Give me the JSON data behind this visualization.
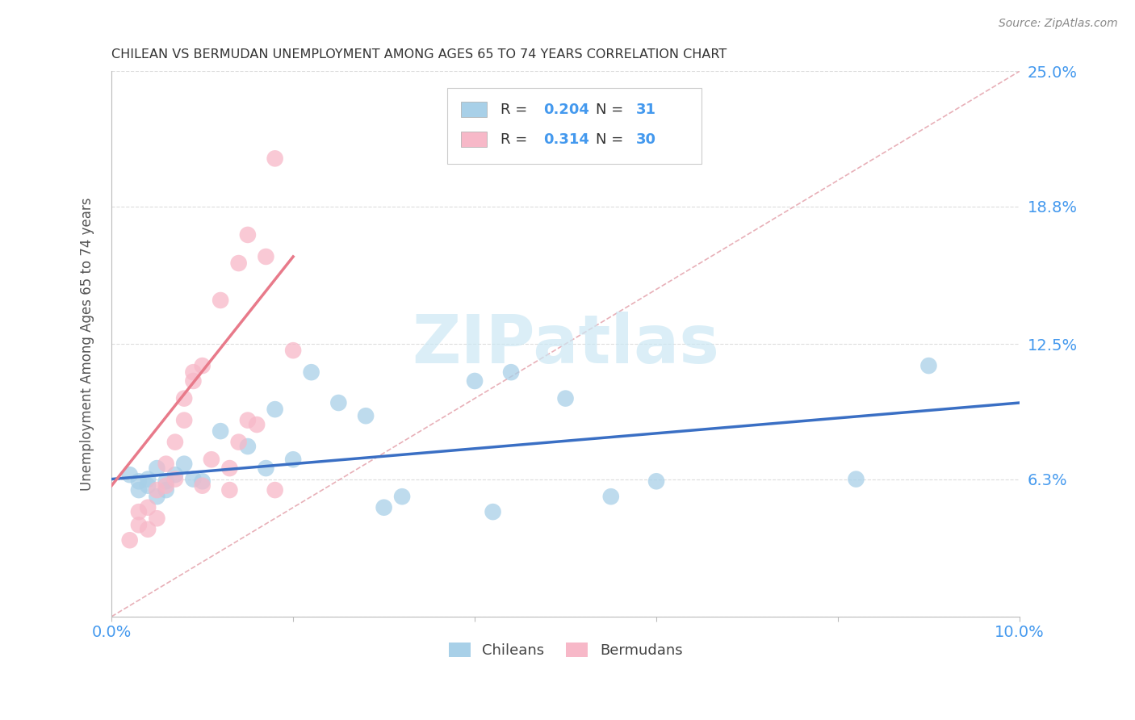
{
  "title": "CHILEAN VS BERMUDAN UNEMPLOYMENT AMONG AGES 65 TO 74 YEARS CORRELATION CHART",
  "source": "Source: ZipAtlas.com",
  "ylabel": "Unemployment Among Ages 65 to 74 years",
  "xlim": [
    0.0,
    0.1
  ],
  "ylim": [
    -0.01,
    0.26
  ],
  "plot_ylim": [
    0.0,
    0.25
  ],
  "xticks": [
    0.0,
    0.02,
    0.04,
    0.06,
    0.08,
    0.1
  ],
  "xticklabels": [
    "0.0%",
    "",
    "",
    "",
    "",
    "10.0%"
  ],
  "yticks": [
    0.0,
    0.063,
    0.125,
    0.188,
    0.25
  ],
  "yticklabels": [
    "",
    "6.3%",
    "12.5%",
    "18.8%",
    "25.0%"
  ],
  "chilean_color": "#a8d0e8",
  "bermudan_color": "#f7b8c8",
  "chilean_line_color": "#3a6fc4",
  "bermudan_line_color": "#e87a8a",
  "diagonal_color": "#e8b0b8",
  "tick_label_color": "#4499ee",
  "legend_text_color": "#000000",
  "legend_value_color": "#4499ee",
  "watermark_color": "#cce8f4",
  "chileans_x": [
    0.002,
    0.003,
    0.003,
    0.004,
    0.004,
    0.005,
    0.005,
    0.006,
    0.006,
    0.007,
    0.008,
    0.009,
    0.01,
    0.012,
    0.015,
    0.017,
    0.018,
    0.02,
    0.022,
    0.025,
    0.028,
    0.03,
    0.032,
    0.04,
    0.042,
    0.044,
    0.05,
    0.055,
    0.06,
    0.082,
    0.09
  ],
  "chileans_y": [
    0.065,
    0.062,
    0.058,
    0.06,
    0.063,
    0.068,
    0.055,
    0.062,
    0.058,
    0.065,
    0.07,
    0.063,
    0.062,
    0.085,
    0.078,
    0.068,
    0.095,
    0.072,
    0.112,
    0.098,
    0.092,
    0.05,
    0.055,
    0.108,
    0.048,
    0.112,
    0.1,
    0.055,
    0.062,
    0.063,
    0.115
  ],
  "bermudans_x": [
    0.002,
    0.003,
    0.003,
    0.004,
    0.004,
    0.005,
    0.005,
    0.006,
    0.006,
    0.007,
    0.007,
    0.008,
    0.008,
    0.009,
    0.009,
    0.01,
    0.01,
    0.011,
    0.012,
    0.013,
    0.013,
    0.014,
    0.014,
    0.015,
    0.015,
    0.016,
    0.017,
    0.018,
    0.018,
    0.02
  ],
  "bermudans_y": [
    0.035,
    0.042,
    0.048,
    0.04,
    0.05,
    0.058,
    0.045,
    0.06,
    0.07,
    0.063,
    0.08,
    0.09,
    0.1,
    0.108,
    0.112,
    0.115,
    0.06,
    0.072,
    0.145,
    0.058,
    0.068,
    0.162,
    0.08,
    0.175,
    0.09,
    0.088,
    0.165,
    0.21,
    0.058,
    0.122
  ],
  "chil_line_x": [
    0.0,
    0.1
  ],
  "chil_line_y": [
    0.063,
    0.098
  ],
  "berm_line_x": [
    0.0,
    0.02
  ],
  "berm_line_y": [
    0.06,
    0.165
  ],
  "watermark": "ZIPatlas",
  "background_color": "#ffffff",
  "grid_color": "#dddddd"
}
